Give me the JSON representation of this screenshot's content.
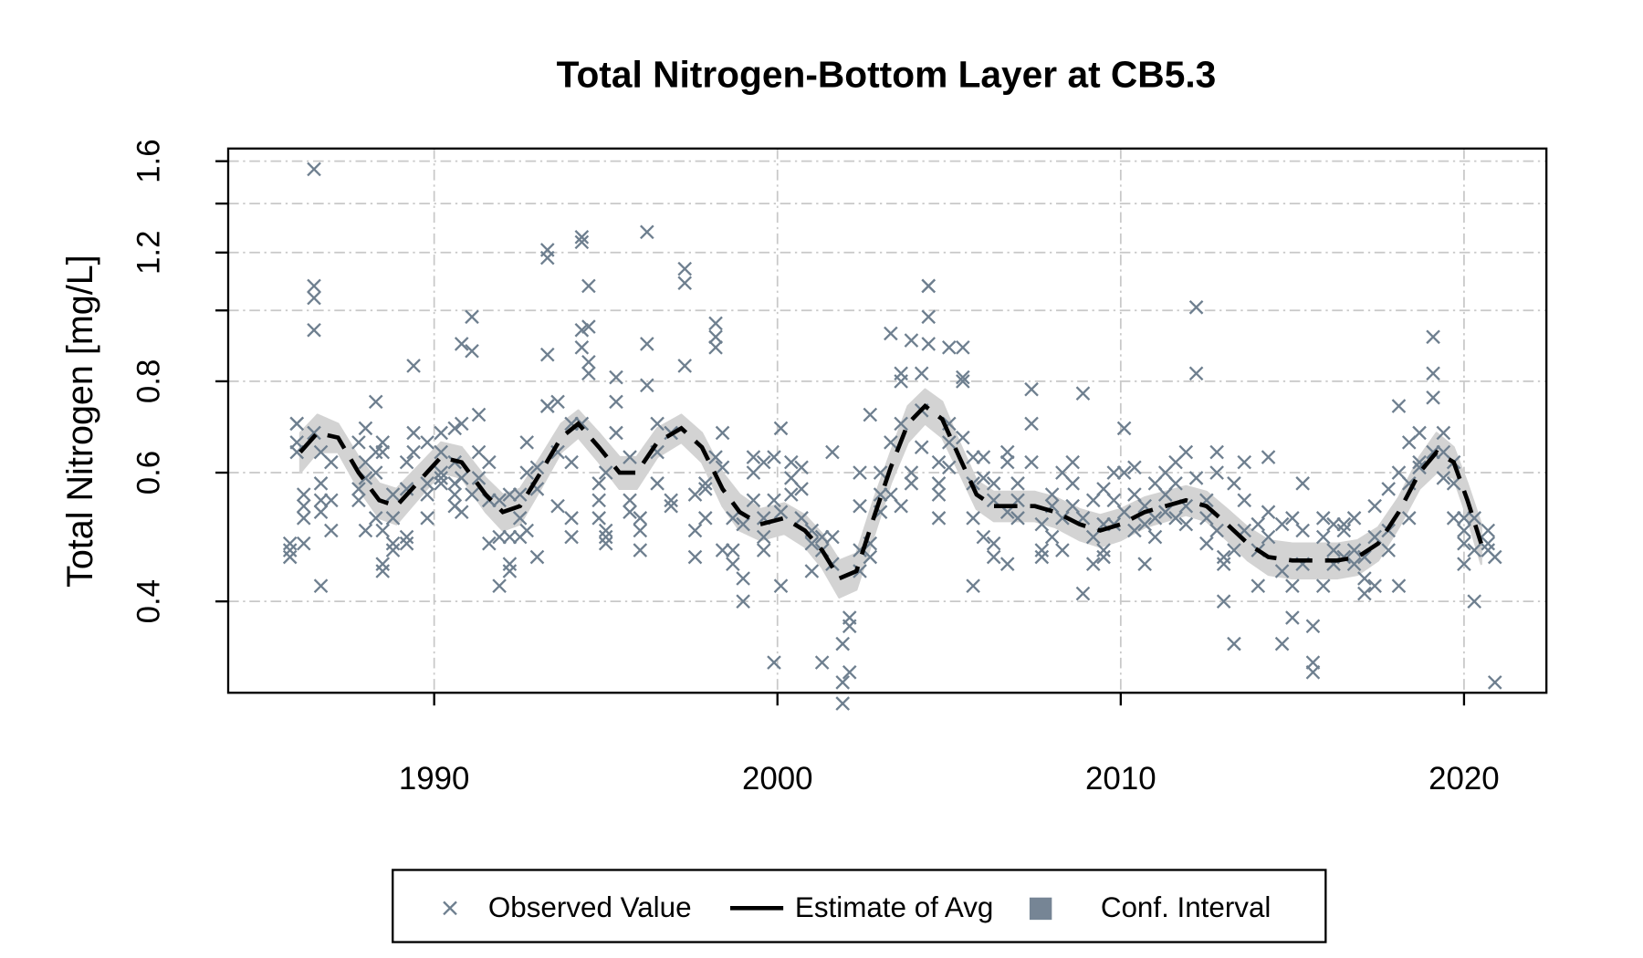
{
  "chart_data": {
    "type": "scatter",
    "title": "Total Nitrogen-Bottom Layer at CB5.3",
    "y_label": "Total Nitrogen [mg/L]",
    "xlim": [
      1984.0,
      2022.4
    ],
    "xticks": [
      1990,
      2000,
      2010,
      2020
    ],
    "ylim": [
      0.3,
      1.665
    ],
    "yticks": [
      0.4,
      0.6,
      0.8,
      1.2,
      1.6
    ],
    "yminor_ticks": [
      1.0,
      1.4
    ],
    "log_y": true,
    "grid": true,
    "legend_position": "bottom",
    "series": [
      {
        "name": "Observed Value",
        "color": "#6e7f8f",
        "marker": "x",
        "x": [
          1985.8,
          1985.8,
          1985.8,
          1986.0,
          1986.0,
          1986.0,
          1986.0,
          1986.2,
          1986.2,
          1986.2,
          1986.2,
          1986.5,
          1986.5,
          1986.5,
          1986.5,
          1986.5,
          1986.7,
          1986.7,
          1986.7,
          1986.7,
          1986.7,
          1987.0,
          1987.0,
          1987.0,
          1987.8,
          1987.8,
          1987.8,
          1988.0,
          1988.0,
          1988.0,
          1988.0,
          1988.3,
          1988.3,
          1988.3,
          1988.3,
          1988.5,
          1988.5,
          1988.5,
          1988.5,
          1988.5,
          1988.8,
          1988.8,
          1988.8,
          1988.8,
          1989.2,
          1989.2,
          1989.2,
          1989.2,
          1989.4,
          1989.4,
          1989.4,
          1989.8,
          1989.8,
          1989.8,
          1989.8,
          1990.2,
          1990.2,
          1990.2,
          1990.2,
          1990.2,
          1990.6,
          1990.6,
          1990.6,
          1990.6,
          1990.6,
          1990.8,
          1990.8,
          1990.8,
          1990.8,
          1991.1,
          1991.1,
          1991.1,
          1991.3,
          1991.3,
          1991.3,
          1991.6,
          1991.6,
          1991.6,
          1991.6,
          1991.9,
          1991.9,
          1991.9,
          1992.2,
          1992.2,
          1992.2,
          1992.2,
          1992.5,
          1992.5,
          1992.5,
          1992.7,
          1992.7,
          1992.7,
          1993.0,
          1993.0,
          1993.0,
          1993.3,
          1993.3,
          1993.3,
          1993.3,
          1993.3,
          1993.6,
          1993.6,
          1993.6,
          1994.0,
          1994.0,
          1994.0,
          1994.0,
          1994.3,
          1994.3,
          1994.3,
          1994.3,
          1994.3,
          1994.5,
          1994.5,
          1994.5,
          1994.5,
          1994.8,
          1994.8,
          1994.8,
          1995.0,
          1995.0,
          1995.0,
          1995.0,
          1995.3,
          1995.3,
          1995.3,
          1995.7,
          1995.7,
          1995.7,
          1996.0,
          1996.0,
          1996.0,
          1996.2,
          1996.2,
          1996.2,
          1996.5,
          1996.5,
          1996.5,
          1996.9,
          1996.9,
          1996.9,
          1997.3,
          1997.3,
          1997.3,
          1997.6,
          1997.6,
          1997.6,
          1997.9,
          1997.9,
          1997.9,
          1998.2,
          1998.2,
          1998.2,
          1998.2,
          1998.4,
          1998.4,
          1998.4,
          1998.7,
          1998.7,
          1998.7,
          1999.0,
          1999.0,
          1999.0,
          1999.3,
          1999.3,
          1999.3,
          1999.6,
          1999.6,
          1999.6,
          1999.6,
          1999.9,
          1999.9,
          1999.9,
          2000.1,
          2000.1,
          2000.1,
          2000.4,
          2000.4,
          2000.4,
          2000.7,
          2000.7,
          2000.7,
          2001.0,
          2001.0,
          2001.0,
          2001.3,
          2001.3,
          2001.3,
          2001.6,
          2001.6,
          2001.6,
          2001.9,
          2001.9,
          2001.9,
          2002.1,
          2002.1,
          2002.1,
          2002.4,
          2002.4,
          2002.4,
          2002.4,
          2002.7,
          2002.7,
          2002.7,
          2003.0,
          2003.0,
          2003.0,
          2003.3,
          2003.3,
          2003.3,
          2003.6,
          2003.6,
          2003.6,
          2003.6,
          2003.9,
          2003.9,
          2003.9,
          2004.2,
          2004.2,
          2004.2,
          2004.4,
          2004.4,
          2004.4,
          2004.4,
          2004.7,
          2004.7,
          2004.7,
          2004.7,
          2005.0,
          2005.0,
          2005.0,
          2005.0,
          2005.4,
          2005.4,
          2005.4,
          2005.4,
          2005.7,
          2005.7,
          2005.7,
          2005.7,
          2006.0,
          2006.0,
          2006.0,
          2006.3,
          2006.3,
          2006.3,
          2006.3,
          2006.7,
          2006.7,
          2006.7,
          2006.7,
          2007.0,
          2007.0,
          2007.0,
          2007.4,
          2007.4,
          2007.4,
          2007.7,
          2007.7,
          2007.7,
          2008.0,
          2008.0,
          2008.0,
          2008.3,
          2008.3,
          2008.3,
          2008.6,
          2008.6,
          2008.6,
          2008.9,
          2008.9,
          2008.9,
          2009.2,
          2009.2,
          2009.2,
          2009.5,
          2009.5,
          2009.5,
          2009.5,
          2009.8,
          2009.8,
          2009.8,
          2010.1,
          2010.1,
          2010.1,
          2010.4,
          2010.4,
          2010.4,
          2010.7,
          2010.7,
          2010.7,
          2011.0,
          2011.0,
          2011.0,
          2011.3,
          2011.3,
          2011.3,
          2011.6,
          2011.6,
          2011.6,
          2011.9,
          2011.9,
          2011.9,
          2012.2,
          2012.2,
          2012.2,
          2012.5,
          2012.5,
          2012.5,
          2012.8,
          2012.8,
          2012.8,
          2013.0,
          2013.0,
          2013.0,
          2013.3,
          2013.3,
          2013.3,
          2013.6,
          2013.6,
          2013.6,
          2014.0,
          2014.0,
          2014.0,
          2014.3,
          2014.3,
          2014.3,
          2014.7,
          2014.7,
          2014.7,
          2015.0,
          2015.0,
          2015.0,
          2015.3,
          2015.3,
          2015.3,
          2015.6,
          2015.6,
          2015.6,
          2015.9,
          2015.9,
          2015.9,
          2016.2,
          2016.2,
          2016.2,
          2016.5,
          2016.5,
          2016.5,
          2016.8,
          2016.8,
          2016.8,
          2017.1,
          2017.1,
          2017.1,
          2017.4,
          2017.4,
          2017.4,
          2017.8,
          2017.8,
          2017.8,
          2018.1,
          2018.1,
          2018.1,
          2018.4,
          2018.4,
          2018.4,
          2018.7,
          2018.7,
          2018.7,
          2019.1,
          2019.1,
          2019.1,
          2019.1,
          2019.4,
          2019.4,
          2019.4,
          2019.7,
          2019.7,
          2019.7,
          2020.0,
          2020.0,
          2020.0,
          2020.0,
          2020.3,
          2020.3,
          2020.3,
          2020.7,
          2020.7,
          2020.7,
          2020.9,
          2020.9
        ],
        "values": [
          0.47,
          0.48,
          0.46,
          0.66,
          0.7,
          0.64,
          0.7,
          0.56,
          0.54,
          0.52,
          0.48,
          1.56,
          1.08,
          1.04,
          0.94,
          0.68,
          0.64,
          0.58,
          0.55,
          0.42,
          0.53,
          0.5,
          0.62,
          0.55,
          0.55,
          0.57,
          0.66,
          0.69,
          0.62,
          0.59,
          0.5,
          0.75,
          0.64,
          0.6,
          0.52,
          0.44,
          0.45,
          0.5,
          0.64,
          0.66,
          0.47,
          0.48,
          0.56,
          0.52,
          0.48,
          0.49,
          0.57,
          0.62,
          0.68,
          0.84,
          0.64,
          0.58,
          0.56,
          0.66,
          0.52,
          0.6,
          0.68,
          0.64,
          0.59,
          0.58,
          0.62,
          0.58,
          0.56,
          0.54,
          0.69,
          0.53,
          0.7,
          0.9,
          0.59,
          0.88,
          0.98,
          0.56,
          0.72,
          0.64,
          0.59,
          0.48,
          0.55,
          0.62,
          0.55,
          0.42,
          0.49,
          0.55,
          0.44,
          0.45,
          0.49,
          0.56,
          0.56,
          0.49,
          0.52,
          0.66,
          0.5,
          0.6,
          0.46,
          0.57,
          0.61,
          0.74,
          0.74,
          0.87,
          1.18,
          1.21,
          0.64,
          0.54,
          0.75,
          0.49,
          0.52,
          0.62,
          0.7,
          0.94,
          0.89,
          1.24,
          1.26,
          0.7,
          1.08,
          0.82,
          0.85,
          0.95,
          0.52,
          0.55,
          0.58,
          0.49,
          0.48,
          0.5,
          0.6,
          0.68,
          0.75,
          0.81,
          0.63,
          0.55,
          0.53,
          0.52,
          0.47,
          0.5,
          1.28,
          0.9,
          0.79,
          0.7,
          0.58,
          0.64,
          0.54,
          0.55,
          0.68,
          1.14,
          1.09,
          0.84,
          0.46,
          0.5,
          0.56,
          0.52,
          0.57,
          0.58,
          0.96,
          0.92,
          0.89,
          0.63,
          0.68,
          0.61,
          0.47,
          0.47,
          0.45,
          0.52,
          0.43,
          0.4,
          0.51,
          0.55,
          0.6,
          0.63,
          0.47,
          0.49,
          0.62,
          0.52,
          0.33,
          0.55,
          0.63,
          0.69,
          0.53,
          0.42,
          0.59,
          0.62,
          0.56,
          0.61,
          0.57,
          0.52,
          0.44,
          0.48,
          0.5,
          0.33,
          0.47,
          0.49,
          0.45,
          0.49,
          0.64,
          0.29,
          0.31,
          0.35,
          0.32,
          0.38,
          0.37,
          0.44,
          0.47,
          0.54,
          0.6,
          0.72,
          0.48,
          0.46,
          0.53,
          0.56,
          0.6,
          0.93,
          0.66,
          0.56,
          0.8,
          0.82,
          0.7,
          0.54,
          0.91,
          0.6,
          0.58,
          0.82,
          0.73,
          0.65,
          1.08,
          1.08,
          0.98,
          0.9,
          0.62,
          0.56,
          0.58,
          0.52,
          0.89,
          0.7,
          0.66,
          0.61,
          0.81,
          0.8,
          0.89,
          0.67,
          0.52,
          0.58,
          0.63,
          0.42,
          0.49,
          0.59,
          0.63,
          0.46,
          0.48,
          0.55,
          0.58,
          0.45,
          0.53,
          0.62,
          0.64,
          0.52,
          0.55,
          0.58,
          0.62,
          0.7,
          0.78,
          0.47,
          0.46,
          0.51,
          0.49,
          0.54,
          0.56,
          0.47,
          0.52,
          0.6,
          0.54,
          0.58,
          0.62,
          0.41,
          0.52,
          0.77,
          0.45,
          0.49,
          0.55,
          0.46,
          0.47,
          0.51,
          0.57,
          0.51,
          0.55,
          0.6,
          0.6,
          0.69,
          0.53,
          0.5,
          0.61,
          0.56,
          0.45,
          0.51,
          0.54,
          0.49,
          0.52,
          0.58,
          0.53,
          0.6,
          0.56,
          0.52,
          0.58,
          0.62,
          0.51,
          0.54,
          0.64,
          1.01,
          0.82,
          0.59,
          0.48,
          0.52,
          0.55,
          0.5,
          0.6,
          0.64,
          0.4,
          0.45,
          0.46,
          0.35,
          0.47,
          0.58,
          0.5,
          0.55,
          0.62,
          0.42,
          0.47,
          0.51,
          0.49,
          0.53,
          0.63,
          0.35,
          0.44,
          0.51,
          0.38,
          0.42,
          0.52,
          0.45,
          0.5,
          0.58,
          0.32,
          0.37,
          0.33,
          0.42,
          0.49,
          0.52,
          0.45,
          0.51,
          0.47,
          0.51,
          0.46,
          0.5,
          0.52,
          0.47,
          0.45,
          0.43,
          0.41,
          0.46,
          0.42,
          0.54,
          0.49,
          0.47,
          0.5,
          0.57,
          0.42,
          0.6,
          0.74,
          0.52,
          0.58,
          0.66,
          0.61,
          0.62,
          0.68,
          0.92,
          0.82,
          0.76,
          0.64,
          0.59,
          0.68,
          0.64,
          0.62,
          0.58,
          0.52,
          0.48,
          0.45,
          0.5,
          0.52,
          0.4,
          0.47,
          0.52,
          0.5,
          0.48,
          0.47,
          0.31,
          0.46
        ]
      },
      {
        "name": "Estimate of Avg",
        "color": "#000000",
        "line": "dashed",
        "x": [
          1986.1,
          1986.6,
          1987.2,
          1987.8,
          1988.4,
          1988.9,
          1989.5,
          1990.2,
          1990.8,
          1991.5,
          1992.0,
          1992.5,
          1993.1,
          1993.7,
          1994.2,
          1994.8,
          1995.4,
          1995.9,
          1996.5,
          1997.2,
          1997.8,
          1998.4,
          1998.9,
          1999.5,
          2000.2,
          2000.8,
          2001.3,
          2001.8,
          2002.3,
          2002.8,
          2003.3,
          2003.8,
          2004.3,
          2004.8,
          2005.3,
          2005.8,
          2006.3,
          2006.9,
          2007.5,
          2008.1,
          2008.8,
          2009.4,
          2010.0,
          2010.7,
          2011.3,
          2011.9,
          2012.5,
          2013.1,
          2013.7,
          2014.3,
          2015.0,
          2015.6,
          2016.3,
          2016.9,
          2017.5,
          2018.1,
          2018.7,
          2019.2,
          2019.7,
          2020.1,
          2020.5
        ],
        "values": [
          0.64,
          0.68,
          0.67,
          0.6,
          0.55,
          0.54,
          0.58,
          0.63,
          0.62,
          0.56,
          0.53,
          0.54,
          0.6,
          0.67,
          0.7,
          0.65,
          0.6,
          0.6,
          0.66,
          0.69,
          0.65,
          0.57,
          0.53,
          0.51,
          0.52,
          0.5,
          0.47,
          0.43,
          0.44,
          0.52,
          0.61,
          0.7,
          0.74,
          0.71,
          0.63,
          0.56,
          0.54,
          0.54,
          0.54,
          0.53,
          0.51,
          0.5,
          0.51,
          0.53,
          0.54,
          0.55,
          0.54,
          0.51,
          0.48,
          0.46,
          0.455,
          0.455,
          0.455,
          0.46,
          0.48,
          0.53,
          0.6,
          0.64,
          0.62,
          0.55,
          0.48
        ]
      },
      {
        "name": "Conf. Interval",
        "color": "#768595",
        "fill": "#d3d3d3",
        "x": [
          1986.1,
          1986.6,
          1987.2,
          1987.8,
          1988.4,
          1988.9,
          1989.5,
          1990.2,
          1990.8,
          1991.5,
          1992.0,
          1992.5,
          1993.1,
          1993.7,
          1994.2,
          1994.8,
          1995.4,
          1995.9,
          1996.5,
          1997.2,
          1997.8,
          1998.4,
          1998.9,
          1999.5,
          2000.2,
          2000.8,
          2001.3,
          2001.8,
          2002.3,
          2002.8,
          2003.3,
          2003.8,
          2004.3,
          2004.8,
          2005.3,
          2005.8,
          2006.3,
          2006.9,
          2007.5,
          2008.1,
          2008.8,
          2009.4,
          2010.0,
          2010.7,
          2011.3,
          2011.9,
          2012.5,
          2013.1,
          2013.7,
          2014.3,
          2015.0,
          2015.6,
          2016.3,
          2016.9,
          2017.5,
          2018.1,
          2018.7,
          2019.2,
          2019.7,
          2020.1,
          2020.5
        ],
        "lower": [
          0.6,
          0.64,
          0.64,
          0.57,
          0.52,
          0.51,
          0.55,
          0.6,
          0.59,
          0.53,
          0.5,
          0.51,
          0.57,
          0.64,
          0.67,
          0.62,
          0.57,
          0.57,
          0.63,
          0.66,
          0.62,
          0.54,
          0.5,
          0.485,
          0.495,
          0.475,
          0.445,
          0.405,
          0.415,
          0.49,
          0.58,
          0.66,
          0.7,
          0.67,
          0.6,
          0.535,
          0.515,
          0.515,
          0.515,
          0.505,
          0.485,
          0.475,
          0.485,
          0.505,
          0.515,
          0.525,
          0.515,
          0.485,
          0.455,
          0.435,
          0.43,
          0.43,
          0.43,
          0.435,
          0.455,
          0.505,
          0.57,
          0.6,
          0.59,
          0.52,
          0.45
        ],
        "upper": [
          0.68,
          0.72,
          0.7,
          0.63,
          0.58,
          0.57,
          0.61,
          0.66,
          0.65,
          0.59,
          0.56,
          0.57,
          0.63,
          0.7,
          0.73,
          0.68,
          0.63,
          0.63,
          0.69,
          0.72,
          0.68,
          0.6,
          0.56,
          0.535,
          0.545,
          0.525,
          0.495,
          0.455,
          0.465,
          0.55,
          0.64,
          0.74,
          0.78,
          0.75,
          0.66,
          0.585,
          0.565,
          0.565,
          0.565,
          0.555,
          0.535,
          0.525,
          0.535,
          0.555,
          0.565,
          0.575,
          0.565,
          0.535,
          0.505,
          0.485,
          0.48,
          0.48,
          0.48,
          0.485,
          0.505,
          0.555,
          0.63,
          0.68,
          0.65,
          0.58,
          0.51
        ]
      }
    ]
  }
}
